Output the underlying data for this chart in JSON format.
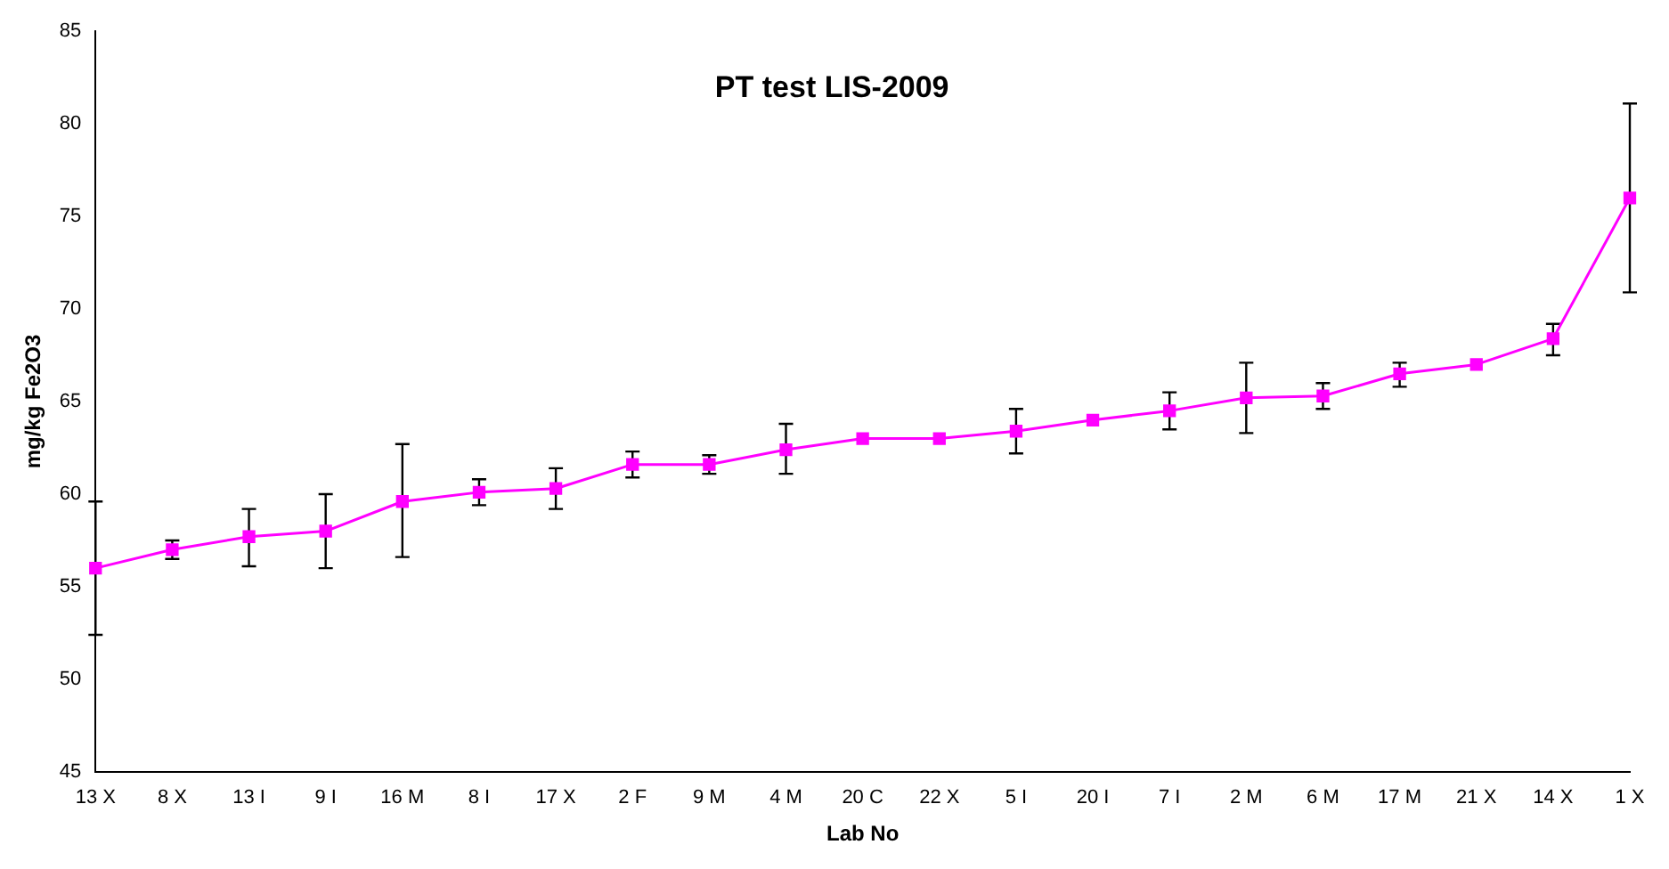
{
  "chart_data": {
    "type": "line",
    "title": "PT test LIS-2009",
    "xlabel": "Lab No",
    "ylabel": "mg/kg Fe2O3",
    "categories": [
      "13 X",
      "8 X",
      "13 I",
      "9 I",
      "16 M",
      "8 I",
      "17 X",
      "2 F",
      "9 M",
      "4 M",
      "20 C",
      "22 X",
      "5 I",
      "20 I",
      "7 I",
      "2 M",
      "6 M",
      "17 M",
      "21 X",
      "14 X",
      "1 X"
    ],
    "series": [
      {
        "color": "#ff00ff",
        "values": [
          56.0,
          57.0,
          57.7,
          58.0,
          59.6,
          60.1,
          60.3,
          61.6,
          61.6,
          62.4,
          63.0,
          63.0,
          63.4,
          64.0,
          64.5,
          65.2,
          65.3,
          66.5,
          67.0,
          68.4,
          76.0
        ],
        "errors": [
          [
            52.4,
            59.6
          ],
          [
            56.5,
            57.5
          ],
          [
            56.1,
            59.2
          ],
          [
            56.0,
            60.0
          ],
          [
            56.6,
            62.7
          ],
          [
            59.4,
            60.8
          ],
          [
            59.2,
            61.4
          ],
          [
            60.9,
            62.3
          ],
          [
            61.1,
            62.1
          ],
          [
            61.1,
            63.8
          ],
          null,
          null,
          [
            62.2,
            64.6
          ],
          null,
          [
            63.5,
            65.5
          ],
          [
            63.3,
            67.1
          ],
          [
            64.6,
            66.0
          ],
          [
            65.8,
            67.1
          ],
          null,
          [
            67.5,
            69.2
          ],
          [
            70.9,
            81.1
          ]
        ]
      }
    ],
    "ylim": [
      45,
      85
    ],
    "yticks": [
      45,
      50,
      55,
      60,
      65,
      70,
      75,
      80,
      85
    ],
    "grid": false,
    "legend": false,
    "marker": "square",
    "line_style": "solid"
  }
}
